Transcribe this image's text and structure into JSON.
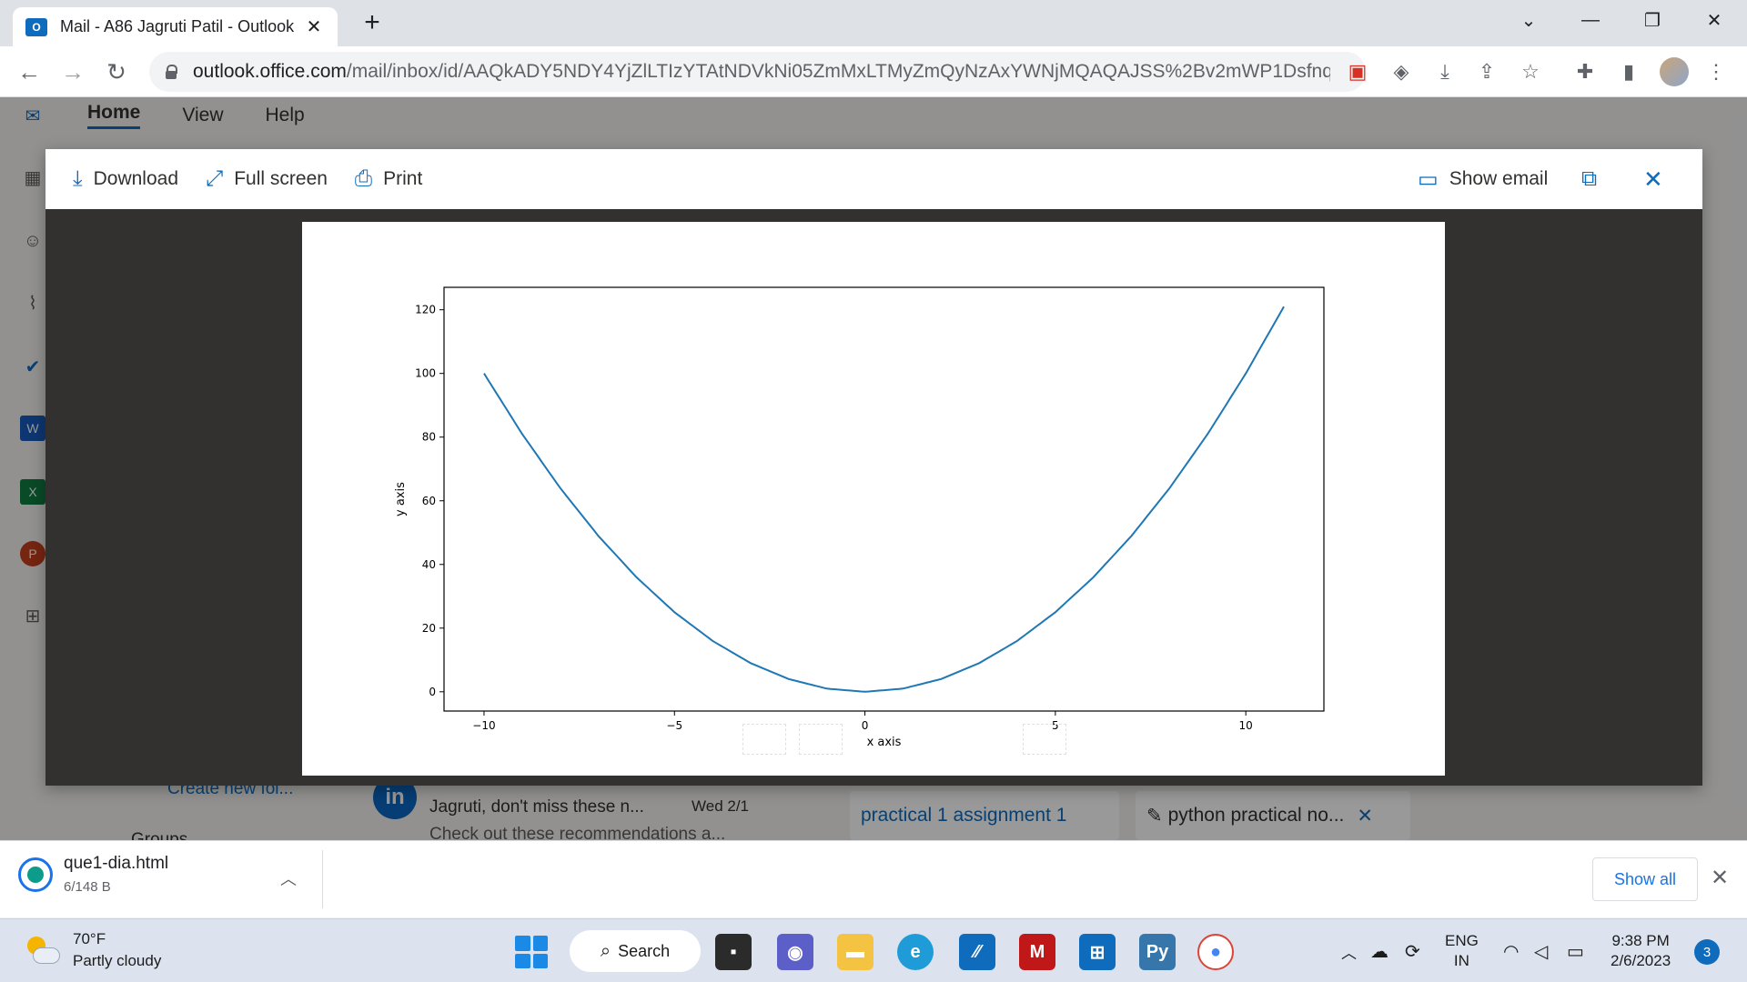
{
  "browser": {
    "tab_title": "Mail - A86 Jagruti Patil - Outlook",
    "url_host": "outlook.office.com",
    "url_path": "/mail/inbox/id/AAQkADY5NDY4YjZlLTIzYTAtNDVkNi05ZmMxLTMyZmQyNzAxYWNjMQAQAJSS%2Bv2mWP1Dsfnq..."
  },
  "outlook": {
    "ribbon_tabs": [
      "Home",
      "View",
      "Help"
    ],
    "folder_link": "Create new fol...",
    "groups_label": "Groups",
    "message_sender_initials": "in",
    "message_subject": "Jagruti, don't miss these n...",
    "message_date": "Wed 2/1",
    "message_preview": "Check out these recommendations a...",
    "attachment_1": "practical 1 assignment 1",
    "attachment_2": "python practical no..."
  },
  "viewer": {
    "download": "Download",
    "fullscreen": "Full screen",
    "print": "Print",
    "show_email": "Show email"
  },
  "chart_data": {
    "type": "line",
    "title": "",
    "xlabel": "x axis",
    "ylabel": "y axis",
    "xlim": [
      -11.05,
      12.05
    ],
    "ylim": [
      -6.05,
      127.05
    ],
    "xticks": [
      -10,
      -5,
      0,
      5,
      10
    ],
    "xtick_labels": [
      "−10",
      "−5",
      "0",
      "5",
      "10"
    ],
    "yticks": [
      0,
      20,
      40,
      60,
      80,
      100,
      120
    ],
    "color": "#1f77b4",
    "series": [
      {
        "x": [
          -10,
          -9,
          -8,
          -7,
          -6,
          -5,
          -4,
          -3,
          -2,
          -1,
          0,
          1,
          2,
          3,
          4,
          5,
          6,
          7,
          8,
          9,
          10,
          11
        ],
        "y": [
          100,
          81,
          64,
          49,
          36,
          25,
          16,
          9,
          4,
          1,
          0,
          1,
          4,
          9,
          16,
          25,
          36,
          49,
          64,
          81,
          100,
          121
        ]
      }
    ]
  },
  "downloads": {
    "file_name": "que1-dia.html",
    "file_size": "6/148 B",
    "show_all": "Show all"
  },
  "taskbar": {
    "temperature": "70°F",
    "weather": "Partly cloudy",
    "search": "Search",
    "lang_top": "ENG",
    "lang_bottom": "IN",
    "time": "9:38 PM",
    "date": "2/6/2023",
    "notifications": "3"
  }
}
